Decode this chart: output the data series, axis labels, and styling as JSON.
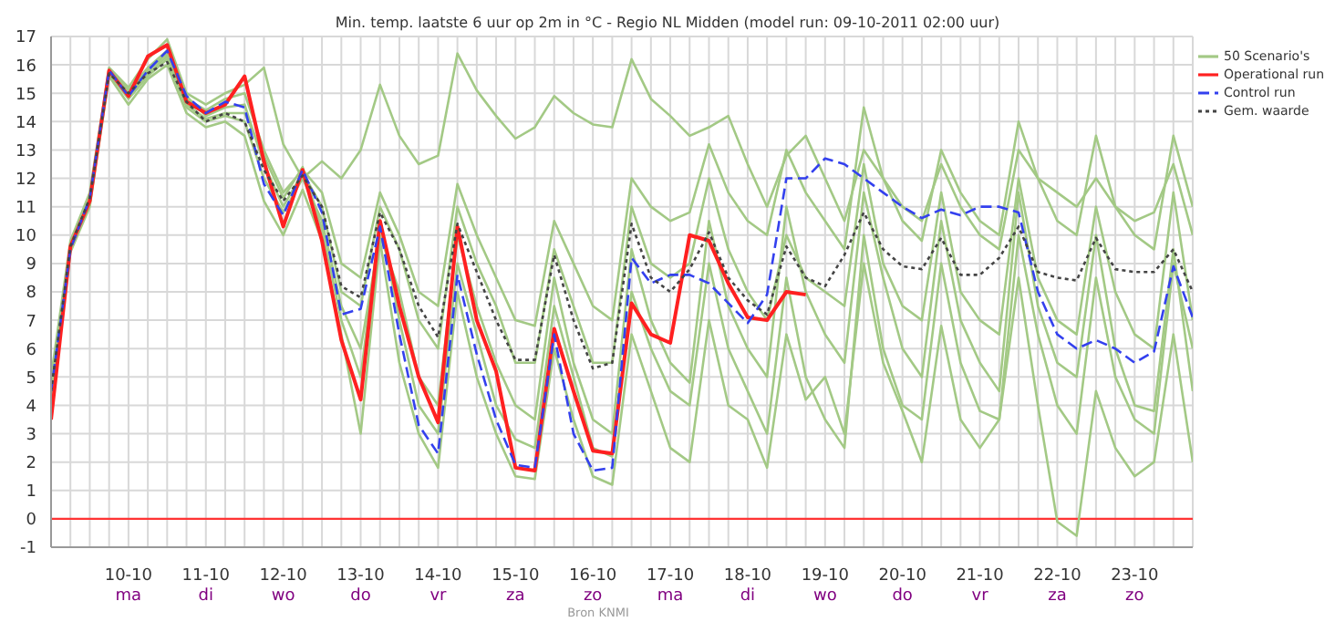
{
  "chart_data": {
    "type": "line",
    "title": "Min. temp. laatste 6 uur op 2m in °C - Regio NL Midden (model run: 09-10-2011 02:00 uur)",
    "annotations": [
      "Bron KNMI"
    ],
    "x": [
      "2011-10-09T02:00",
      "2011-10-09T08:00",
      "2011-10-09T14:00",
      "2011-10-09T20:00",
      "2011-10-10T02:00",
      "2011-10-10T08:00",
      "2011-10-10T14:00",
      "2011-10-10T20:00",
      "2011-10-11T02:00",
      "2011-10-11T08:00",
      "2011-10-11T14:00",
      "2011-10-11T20:00",
      "2011-10-12T02:00",
      "2011-10-12T08:00",
      "2011-10-12T14:00",
      "2011-10-12T20:00",
      "2011-10-13T02:00",
      "2011-10-13T08:00",
      "2011-10-13T14:00",
      "2011-10-13T20:00",
      "2011-10-14T02:00",
      "2011-10-14T08:00",
      "2011-10-14T14:00",
      "2011-10-14T20:00",
      "2011-10-15T02:00",
      "2011-10-15T08:00",
      "2011-10-15T14:00",
      "2011-10-15T20:00",
      "2011-10-16T02:00",
      "2011-10-16T08:00",
      "2011-10-16T14:00",
      "2011-10-16T20:00",
      "2011-10-17T02:00",
      "2011-10-17T08:00",
      "2011-10-17T14:00",
      "2011-10-17T20:00",
      "2011-10-18T02:00",
      "2011-10-18T08:00",
      "2011-10-18T14:00",
      "2011-10-18T20:00",
      "2011-10-19T02:00",
      "2011-10-19T08:00",
      "2011-10-19T14:00",
      "2011-10-19T20:00",
      "2011-10-20T02:00",
      "2011-10-20T08:00",
      "2011-10-20T14:00",
      "2011-10-20T20:00",
      "2011-10-21T02:00",
      "2011-10-21T08:00",
      "2011-10-21T14:00",
      "2011-10-21T20:00",
      "2011-10-22T02:00",
      "2011-10-22T08:00",
      "2011-10-22T14:00",
      "2011-10-22T20:00",
      "2011-10-23T02:00",
      "2011-10-23T08:00",
      "2011-10-23T14:00",
      "2011-10-23T20:00"
    ],
    "xlim": [
      "2011-10-09T02:00",
      "2011-10-23T20:00"
    ],
    "xticks": [
      {
        "value": "2011-10-09T02:00",
        "label": null
      },
      {
        "value": "2011-10-09T08:00",
        "label": null
      },
      {
        "value": "2011-10-09T14:00",
        "label": null
      },
      {
        "value": "2011-10-09T20:00",
        "label": null
      },
      {
        "value": "2011-10-10T02:00",
        "label": "10-10\nma"
      },
      {
        "value": "2011-10-10T08:00",
        "label": null
      },
      {
        "value": "2011-10-10T14:00",
        "label": null
      },
      {
        "value": "2011-10-10T20:00",
        "label": null
      },
      {
        "value": "2011-10-11T02:00",
        "label": "11-10\ndi"
      },
      {
        "value": "2011-10-11T08:00",
        "label": null
      },
      {
        "value": "2011-10-11T14:00",
        "label": null
      },
      {
        "value": "2011-10-11T20:00",
        "label": null
      },
      {
        "value": "2011-10-12T02:00",
        "label": "12-10\nwo"
      },
      {
        "value": "2011-10-12T08:00",
        "label": null
      },
      {
        "value": "2011-10-12T14:00",
        "label": null
      },
      {
        "value": "2011-10-12T20:00",
        "label": null
      },
      {
        "value": "2011-10-13T02:00",
        "label": "13-10\ndo"
      },
      {
        "value": "2011-10-13T08:00",
        "label": null
      },
      {
        "value": "2011-10-13T14:00",
        "label": null
      },
      {
        "value": "2011-10-13T20:00",
        "label": null
      },
      {
        "value": "2011-10-14T02:00",
        "label": "14-10\nvr"
      },
      {
        "value": "2011-10-14T08:00",
        "label": null
      },
      {
        "value": "2011-10-14T14:00",
        "label": null
      },
      {
        "value": "2011-10-14T20:00",
        "label": null
      },
      {
        "value": "2011-10-15T02:00",
        "label": "15-10\nza"
      },
      {
        "value": "2011-10-15T08:00",
        "label": null
      },
      {
        "value": "2011-10-15T14:00",
        "label": null
      },
      {
        "value": "2011-10-15T20:00",
        "label": null
      },
      {
        "value": "2011-10-16T02:00",
        "label": "16-10\nzo"
      },
      {
        "value": "2011-10-16T08:00",
        "label": null
      },
      {
        "value": "2011-10-16T14:00",
        "label": null
      },
      {
        "value": "2011-10-16T20:00",
        "label": null
      },
      {
        "value": "2011-10-17T02:00",
        "label": "17-10\nma"
      },
      {
        "value": "2011-10-17T08:00",
        "label": null
      },
      {
        "value": "2011-10-17T14:00",
        "label": null
      },
      {
        "value": "2011-10-17T20:00",
        "label": null
      },
      {
        "value": "2011-10-18T02:00",
        "label": "18-10\ndi"
      },
      {
        "value": "2011-10-18T08:00",
        "label": null
      },
      {
        "value": "2011-10-18T14:00",
        "label": null
      },
      {
        "value": "2011-10-18T20:00",
        "label": null
      },
      {
        "value": "2011-10-19T02:00",
        "label": "19-10\nwo"
      },
      {
        "value": "2011-10-19T08:00",
        "label": null
      },
      {
        "value": "2011-10-19T14:00",
        "label": null
      },
      {
        "value": "2011-10-19T20:00",
        "label": null
      },
      {
        "value": "2011-10-20T02:00",
        "label": "20-10\ndo"
      },
      {
        "value": "2011-10-20T08:00",
        "label": null
      },
      {
        "value": "2011-10-20T14:00",
        "label": null
      },
      {
        "value": "2011-10-20T20:00",
        "label": null
      },
      {
        "value": "2011-10-21T02:00",
        "label": "21-10\nvr"
      },
      {
        "value": "2011-10-21T08:00",
        "label": null
      },
      {
        "value": "2011-10-21T14:00",
        "label": null
      },
      {
        "value": "2011-10-21T20:00",
        "label": null
      },
      {
        "value": "2011-10-22T02:00",
        "label": "22-10\nza"
      },
      {
        "value": "2011-10-22T08:00",
        "label": null
      },
      {
        "value": "2011-10-22T14:00",
        "label": null
      },
      {
        "value": "2011-10-22T20:00",
        "label": null
      },
      {
        "value": "2011-10-23T02:00",
        "label": "23-10\nzo"
      },
      {
        "value": "2011-10-23T08:00",
        "label": null
      },
      {
        "value": "2011-10-23T14:00",
        "label": null
      },
      {
        "value": "2011-10-23T20:00",
        "label": null
      }
    ],
    "ylim": [
      -1,
      17
    ],
    "yticks": [
      -1,
      0,
      1,
      2,
      3,
      4,
      5,
      6,
      7,
      8,
      9,
      10,
      11,
      12,
      13,
      14,
      15,
      16,
      17
    ],
    "grid": true,
    "legend": "top right",
    "marker": "none",
    "ref_lines": [
      {
        "axis": "y",
        "value": 0,
        "label": null,
        "color": "#ff3333"
      }
    ],
    "series": [
      {
        "name": "50 Scenario's",
        "color": "#a3c985",
        "line_style": "solid",
        "values": [
          5.0,
          9.8,
          11.5,
          15.9,
          15.2,
          16.2,
          16.9,
          15.0,
          14.6,
          15.0,
          15.3,
          15.9,
          13.2,
          12.0,
          12.6,
          12.0,
          13.0,
          15.3,
          13.5,
          12.5,
          12.8,
          16.4,
          15.1,
          14.2,
          13.4,
          13.8,
          14.9,
          14.3,
          13.9,
          13.8,
          16.2,
          14.8,
          14.2,
          13.5,
          13.8,
          14.2,
          12.5,
          11.0,
          12.8,
          13.5,
          12.0,
          10.5,
          13.0,
          12.0,
          11.0,
          10.5,
          12.5,
          11.0,
          10.0,
          9.5,
          13.0,
          12.0,
          11.5,
          11.0,
          12.0,
          11.0,
          10.5,
          10.8,
          12.5,
          10.0
        ]
      },
      {
        "color": "#a3c985",
        "line_style": "solid",
        "values": [
          4.0,
          9.4,
          11.0,
          15.6,
          14.6,
          15.5,
          16.0,
          14.3,
          13.8,
          14.0,
          13.5,
          11.2,
          10.0,
          11.6,
          9.8,
          6.5,
          3.0,
          9.8,
          5.5,
          3.0,
          1.8,
          8.0,
          5.0,
          3.0,
          1.5,
          1.4,
          6.0,
          3.5,
          1.5,
          1.2,
          6.5,
          4.5,
          2.5,
          2.0,
          7.0,
          4.0,
          3.5,
          1.8,
          6.5,
          4.2,
          5.0,
          3.0,
          9.0,
          5.5,
          3.8,
          2.0,
          6.8,
          3.5,
          2.5,
          3.5,
          8.5,
          4.0,
          -0.1,
          -0.6,
          4.5,
          2.5,
          1.5,
          2.0,
          6.5,
          2.0
        ]
      },
      {
        "color": "#a3c985",
        "line_style": "solid",
        "values": [
          4.8,
          9.6,
          11.3,
          15.8,
          15.0,
          15.8,
          16.4,
          14.8,
          14.4,
          14.8,
          15.0,
          13.0,
          11.5,
          12.3,
          11.5,
          9.0,
          8.5,
          11.5,
          10.0,
          8.0,
          7.5,
          11.8,
          10.0,
          8.5,
          7.0,
          6.8,
          10.5,
          9.0,
          7.5,
          7.0,
          12.0,
          11.0,
          10.5,
          10.8,
          13.2,
          11.5,
          10.5,
          10.0,
          13.0,
          11.5,
          10.5,
          9.5,
          14.5,
          12.0,
          10.5,
          9.8,
          13.0,
          11.5,
          10.5,
          10.0,
          14.0,
          12.0,
          10.5,
          10.0,
          13.5,
          11.0,
          10.0,
          9.5,
          13.5,
          11.0
        ]
      },
      {
        "color": "#a3c985",
        "line_style": "solid",
        "values": [
          4.2,
          9.5,
          11.1,
          15.7,
          14.8,
          15.6,
          16.2,
          14.5,
          14.0,
          14.2,
          14.0,
          12.0,
          10.8,
          12.0,
          10.5,
          7.5,
          6.0,
          10.0,
          8.0,
          5.0,
          4.0,
          10.0,
          7.5,
          5.5,
          4.0,
          3.5,
          8.5,
          5.5,
          3.5,
          3.0,
          9.5,
          7.0,
          5.5,
          4.8,
          10.5,
          7.5,
          6.0,
          5.0,
          11.0,
          8.0,
          6.5,
          5.5,
          11.5,
          8.5,
          6.0,
          5.0,
          10.5,
          7.0,
          5.5,
          4.5,
          11.5,
          7.5,
          5.5,
          5.0,
          10.0,
          6.0,
          4.0,
          3.8,
          9.5,
          4.5
        ]
      },
      {
        "color": "#a3c985",
        "line_style": "solid",
        "values": [
          4.5,
          9.7,
          11.4,
          15.8,
          15.1,
          15.9,
          16.5,
          14.9,
          14.2,
          14.5,
          14.6,
          12.5,
          11.0,
          12.2,
          11.0,
          8.0,
          7.5,
          11.0,
          9.5,
          7.0,
          6.0,
          11.0,
          9.0,
          7.5,
          5.5,
          5.5,
          9.5,
          7.5,
          5.5,
          5.5,
          11.0,
          9.0,
          8.5,
          9.0,
          12.0,
          9.5,
          8.0,
          7.0,
          10.0,
          8.5,
          8.0,
          7.5,
          12.5,
          9.0,
          7.5,
          7.0,
          11.5,
          8.0,
          7.0,
          6.5,
          12.0,
          8.5,
          7.0,
          6.5,
          11.0,
          8.0,
          6.5,
          6.0,
          11.5,
          7.0
        ]
      },
      {
        "color": "#a3c985",
        "line_style": "solid",
        "values": [
          4.3,
          9.6,
          11.2,
          15.7,
          14.9,
          15.7,
          16.3,
          14.6,
          14.1,
          14.3,
          14.3,
          12.8,
          11.3,
          12.4,
          10.2,
          7.0,
          5.0,
          10.5,
          7.0,
          4.0,
          3.0,
          9.0,
          6.5,
          4.0,
          2.8,
          2.5,
          7.5,
          5.0,
          2.5,
          2.2,
          8.0,
          6.0,
          4.5,
          4.0,
          9.0,
          6.0,
          4.5,
          3.0,
          8.5,
          5.0,
          3.5,
          2.5,
          10.0,
          6.0,
          4.0,
          3.5,
          9.0,
          5.5,
          3.8,
          3.5,
          10.0,
          6.5,
          4.0,
          3.0,
          8.5,
          5.0,
          3.5,
          3.0,
          9.0,
          6.0
        ]
      },
      {
        "name": "Operational run",
        "color": "#ff2020",
        "line_style": "solid",
        "values": [
          3.5,
          9.6,
          11.2,
          15.8,
          14.9,
          16.3,
          16.7,
          14.7,
          14.3,
          14.6,
          15.6,
          12.6,
          10.3,
          12.3,
          9.8,
          6.3,
          4.2,
          10.5,
          7.5,
          5.0,
          3.4,
          10.3,
          7.0,
          5.2,
          1.8,
          1.7,
          6.7,
          4.5,
          2.4,
          2.3,
          7.6,
          6.5,
          6.2,
          10.0,
          9.8,
          8.3,
          7.1,
          7.0,
          8.0,
          7.9,
          null,
          null,
          null,
          null,
          null,
          null,
          null,
          null,
          null,
          null,
          null,
          null,
          null,
          null,
          null,
          null,
          null,
          null,
          null,
          null
        ]
      },
      {
        "name": "Control run",
        "color": "#3340ee",
        "line_style": "dashed",
        "values": [
          4.5,
          9.5,
          11.3,
          15.8,
          14.9,
          15.8,
          16.5,
          14.9,
          14.3,
          14.7,
          14.5,
          11.8,
          10.7,
          12.3,
          10.8,
          7.2,
          7.4,
          10.3,
          6.5,
          3.3,
          2.3,
          8.6,
          5.8,
          3.5,
          1.9,
          1.8,
          6.5,
          3.0,
          1.7,
          1.8,
          9.2,
          8.3,
          8.6,
          8.6,
          8.3,
          7.6,
          6.9,
          7.9,
          12.0,
          12.0,
          12.7,
          12.5,
          12.0,
          11.5,
          11.0,
          10.6,
          10.9,
          10.7,
          11.0,
          11.0,
          10.8,
          8.0,
          6.5,
          6.0,
          6.3,
          6.0,
          5.5,
          5.9,
          8.9,
          7.1
        ]
      },
      {
        "name": "Gem. waarde",
        "color": "#444444",
        "line_style": "dotted",
        "values": [
          4.5,
          9.6,
          11.3,
          15.7,
          15.0,
          15.7,
          16.1,
          14.7,
          14.0,
          14.3,
          14.0,
          12.3,
          11.2,
          12.1,
          11.0,
          8.2,
          7.8,
          10.8,
          9.5,
          7.5,
          6.4,
          10.4,
          8.7,
          7.0,
          5.6,
          5.6,
          9.3,
          7.0,
          5.3,
          5.5,
          10.4,
          8.5,
          8.0,
          8.8,
          10.1,
          8.5,
          7.7,
          7.2,
          9.6,
          8.5,
          8.2,
          9.3,
          10.8,
          9.5,
          8.9,
          8.8,
          9.9,
          8.6,
          8.6,
          9.2,
          10.3,
          8.7,
          8.5,
          8.4,
          9.9,
          8.8,
          8.7,
          8.7,
          9.5,
          8.0
        ]
      }
    ]
  }
}
